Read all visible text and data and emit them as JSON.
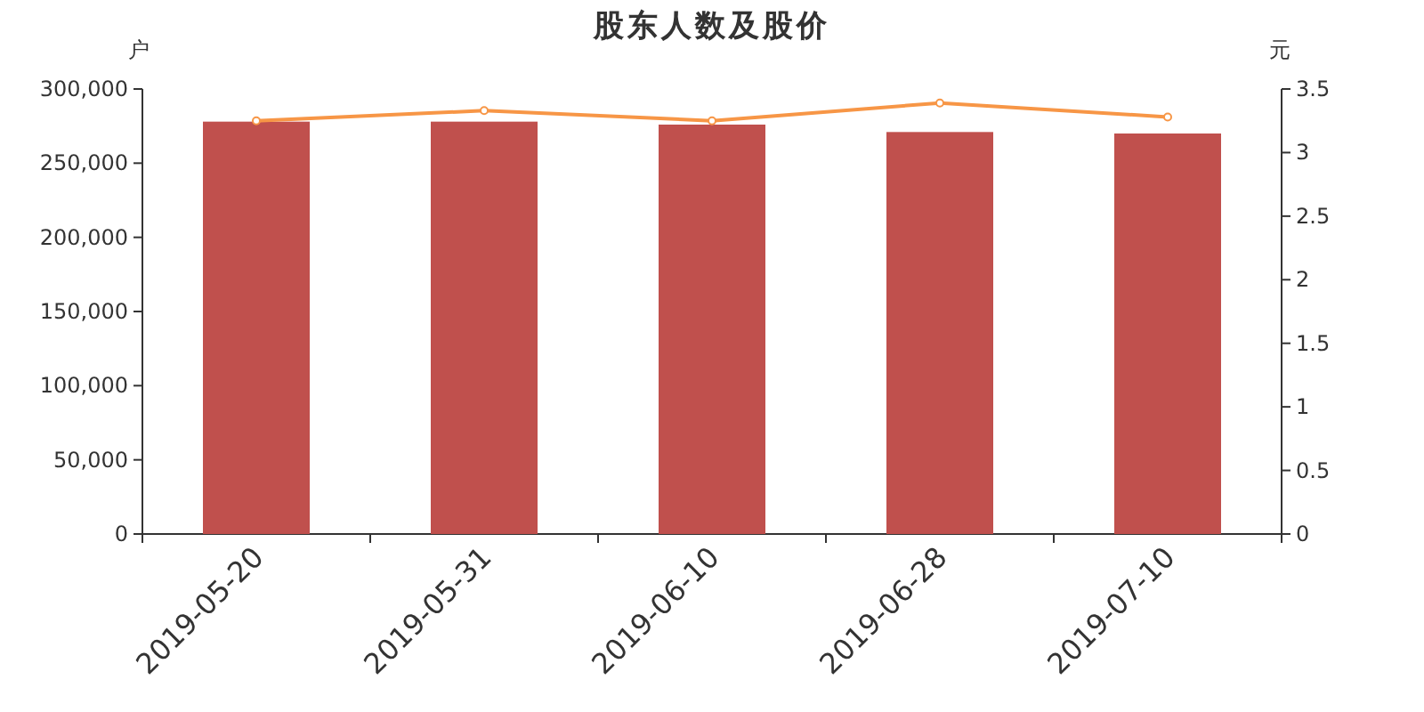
{
  "chart_data": {
    "type": "bar",
    "title": "股东人数及股价",
    "ylabel": "户",
    "y2label": "元",
    "categories": [
      "2019-05-20",
      "2019-05-31",
      "2019-06-10",
      "2019-06-28",
      "2019-07-10"
    ],
    "series": [
      {
        "color": "#c0504d",
        "values": [
          278000,
          278000,
          276000,
          271000,
          270000
        ]
      },
      {
        "type": "line",
        "axis": "y2",
        "color": "#f79646",
        "marker": "circle",
        "values": [
          3.25,
          3.33,
          3.25,
          3.39,
          3.28
        ]
      }
    ],
    "ylim": [
      0,
      300000
    ],
    "yticks": [
      0,
      {
        "value": 50000,
        "label": "50,000"
      },
      {
        "value": 100000,
        "label": "100,000"
      },
      {
        "value": 150000,
        "label": "150,000"
      },
      {
        "value": 200000,
        "label": "200,000"
      },
      {
        "value": 250000,
        "label": "250,000"
      },
      {
        "value": 300000,
        "label": "300,000"
      }
    ],
    "y2lim": [
      0,
      3.5
    ],
    "y2ticks": [
      0,
      0.5,
      1,
      1.5,
      2,
      2.5,
      3,
      3.5
    ],
    "grid": false
  }
}
